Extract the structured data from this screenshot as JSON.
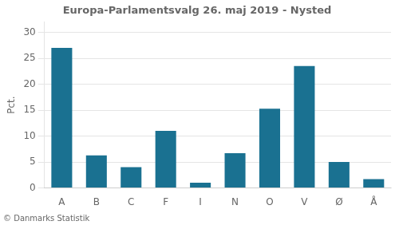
{
  "chart_data": {
    "type": "bar",
    "title": "Europa-Parlamentsvalg 26. maj 2019 - Nysted",
    "categories": [
      "A",
      "B",
      "C",
      "F",
      "I",
      "N",
      "O",
      "V",
      "Ø",
      "Å"
    ],
    "values": [
      27.0,
      6.3,
      4.0,
      11.0,
      1.0,
      6.7,
      15.3,
      23.5,
      5.0,
      1.7
    ],
    "color": "#1a7191",
    "ylabel": "Pct.",
    "ylim": [
      0,
      32
    ],
    "yticks": [
      0,
      5,
      10,
      15,
      20,
      25,
      30
    ],
    "grid": true,
    "footer": "© Danmarks Statistik"
  }
}
